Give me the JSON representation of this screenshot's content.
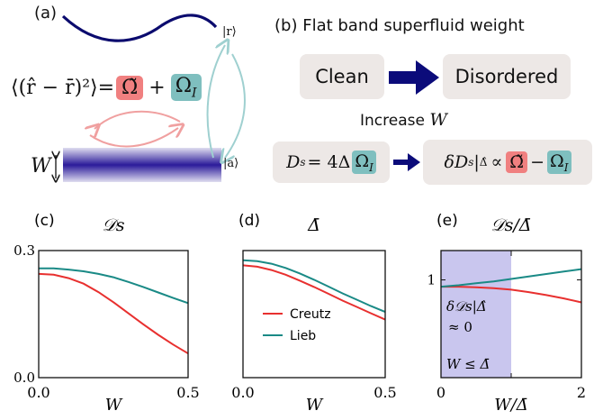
{
  "panel_a": {
    "label": "(a)",
    "ket_r": "|r⟩",
    "ket_a": "|a⟩",
    "W": "W",
    "formula": {
      "lhs": "⟨(r̂ − r̄)²⟩=",
      "omega_tilde": "Ω̃",
      "plus": "+",
      "omega_I": "Ω",
      "omega_I_sub": "I"
    },
    "colors": {
      "red_box": "#f08080",
      "teal_box": "#7fbfbf",
      "band": "#2b1b9a",
      "curve": "#0b0b6e"
    }
  },
  "panel_b": {
    "label": "(b)",
    "title": "Flat band superfluid weight",
    "clean": "Clean",
    "disordered": "Disordered",
    "increase": "Increase",
    "W": "W",
    "eq_left": "D",
    "eq_left_sub": "s",
    "eq_left_rest": " = 4Δ",
    "eq_omega": "Ω",
    "eq_omega_sub": "I",
    "eq_right_delta": "δD",
    "eq_right_sub": "s",
    "eq_right_bar": "|",
    "eq_right_hat": "Δ̂",
    "eq_propto": "∝",
    "eq_minus": "−"
  },
  "chart_data": [
    {
      "type": "line",
      "panel_label": "(c)",
      "title": "𝒟s",
      "xlabel": "W",
      "xlim": [
        0,
        0.5
      ],
      "ylim": [
        0,
        0.3
      ],
      "xticks": [
        "0.0",
        "0.5"
      ],
      "yticks": [
        "0.0",
        "0.3"
      ],
      "series": [
        {
          "name": "Creutz",
          "color": "#e8302f",
          "x": [
            0,
            0.05,
            0.1,
            0.15,
            0.2,
            0.25,
            0.3,
            0.35,
            0.4,
            0.45,
            0.5
          ],
          "y": [
            0.245,
            0.243,
            0.235,
            0.222,
            0.202,
            0.178,
            0.152,
            0.126,
            0.101,
            0.078,
            0.057
          ]
        },
        {
          "name": "Lieb",
          "color": "#1a8a86",
          "x": [
            0,
            0.05,
            0.1,
            0.15,
            0.2,
            0.25,
            0.3,
            0.35,
            0.4,
            0.45,
            0.5
          ],
          "y": [
            0.258,
            0.258,
            0.255,
            0.251,
            0.245,
            0.237,
            0.226,
            0.214,
            0.201,
            0.188,
            0.176
          ]
        }
      ]
    },
    {
      "type": "line",
      "panel_label": "(d)",
      "title": "Δ̄",
      "xlabel": "W",
      "xlim": [
        0,
        0.5
      ],
      "ylim": [
        0,
        0.3
      ],
      "xticks": [
        "0.0",
        "0.5"
      ],
      "legend": [
        "Creutz",
        "Lieb"
      ],
      "series": [
        {
          "name": "Creutz",
          "color": "#e8302f",
          "x": [
            0,
            0.05,
            0.1,
            0.15,
            0.2,
            0.25,
            0.3,
            0.35,
            0.4,
            0.45,
            0.5
          ],
          "y": [
            0.265,
            0.262,
            0.254,
            0.243,
            0.229,
            0.214,
            0.198,
            0.182,
            0.167,
            0.152,
            0.137
          ]
        },
        {
          "name": "Lieb",
          "color": "#1a8a86",
          "x": [
            0,
            0.05,
            0.1,
            0.15,
            0.2,
            0.25,
            0.3,
            0.35,
            0.4,
            0.45,
            0.5
          ],
          "y": [
            0.277,
            0.275,
            0.269,
            0.259,
            0.246,
            0.231,
            0.215,
            0.199,
            0.184,
            0.169,
            0.155
          ]
        }
      ]
    },
    {
      "type": "line",
      "panel_label": "(e)",
      "title": "𝒟s/Δ̄",
      "xlabel": "W/Δ̄",
      "xlim": [
        0,
        2
      ],
      "ylim": [
        0,
        1.3
      ],
      "xticks": [
        "0",
        "2"
      ],
      "yticks": [
        "1"
      ],
      "shaded_region": [
        0,
        1
      ],
      "shade_text1": "δ𝒟s|Δ̂",
      "shade_text2": "≈ 0",
      "shade_text3": "W ≤ Δ̄",
      "series": [
        {
          "name": "Creutz",
          "color": "#e8302f",
          "x": [
            0,
            0.25,
            0.5,
            0.75,
            1.0,
            1.25,
            1.5,
            1.75,
            2.0
          ],
          "y": [
            0.93,
            0.93,
            0.925,
            0.915,
            0.9,
            0.875,
            0.845,
            0.81,
            0.77
          ]
        },
        {
          "name": "Lieb",
          "color": "#1a8a86",
          "x": [
            0,
            0.25,
            0.5,
            0.75,
            1.0,
            1.25,
            1.5,
            1.75,
            2.0
          ],
          "y": [
            0.93,
            0.945,
            0.965,
            0.985,
            1.01,
            1.035,
            1.06,
            1.085,
            1.11
          ]
        }
      ]
    }
  ]
}
